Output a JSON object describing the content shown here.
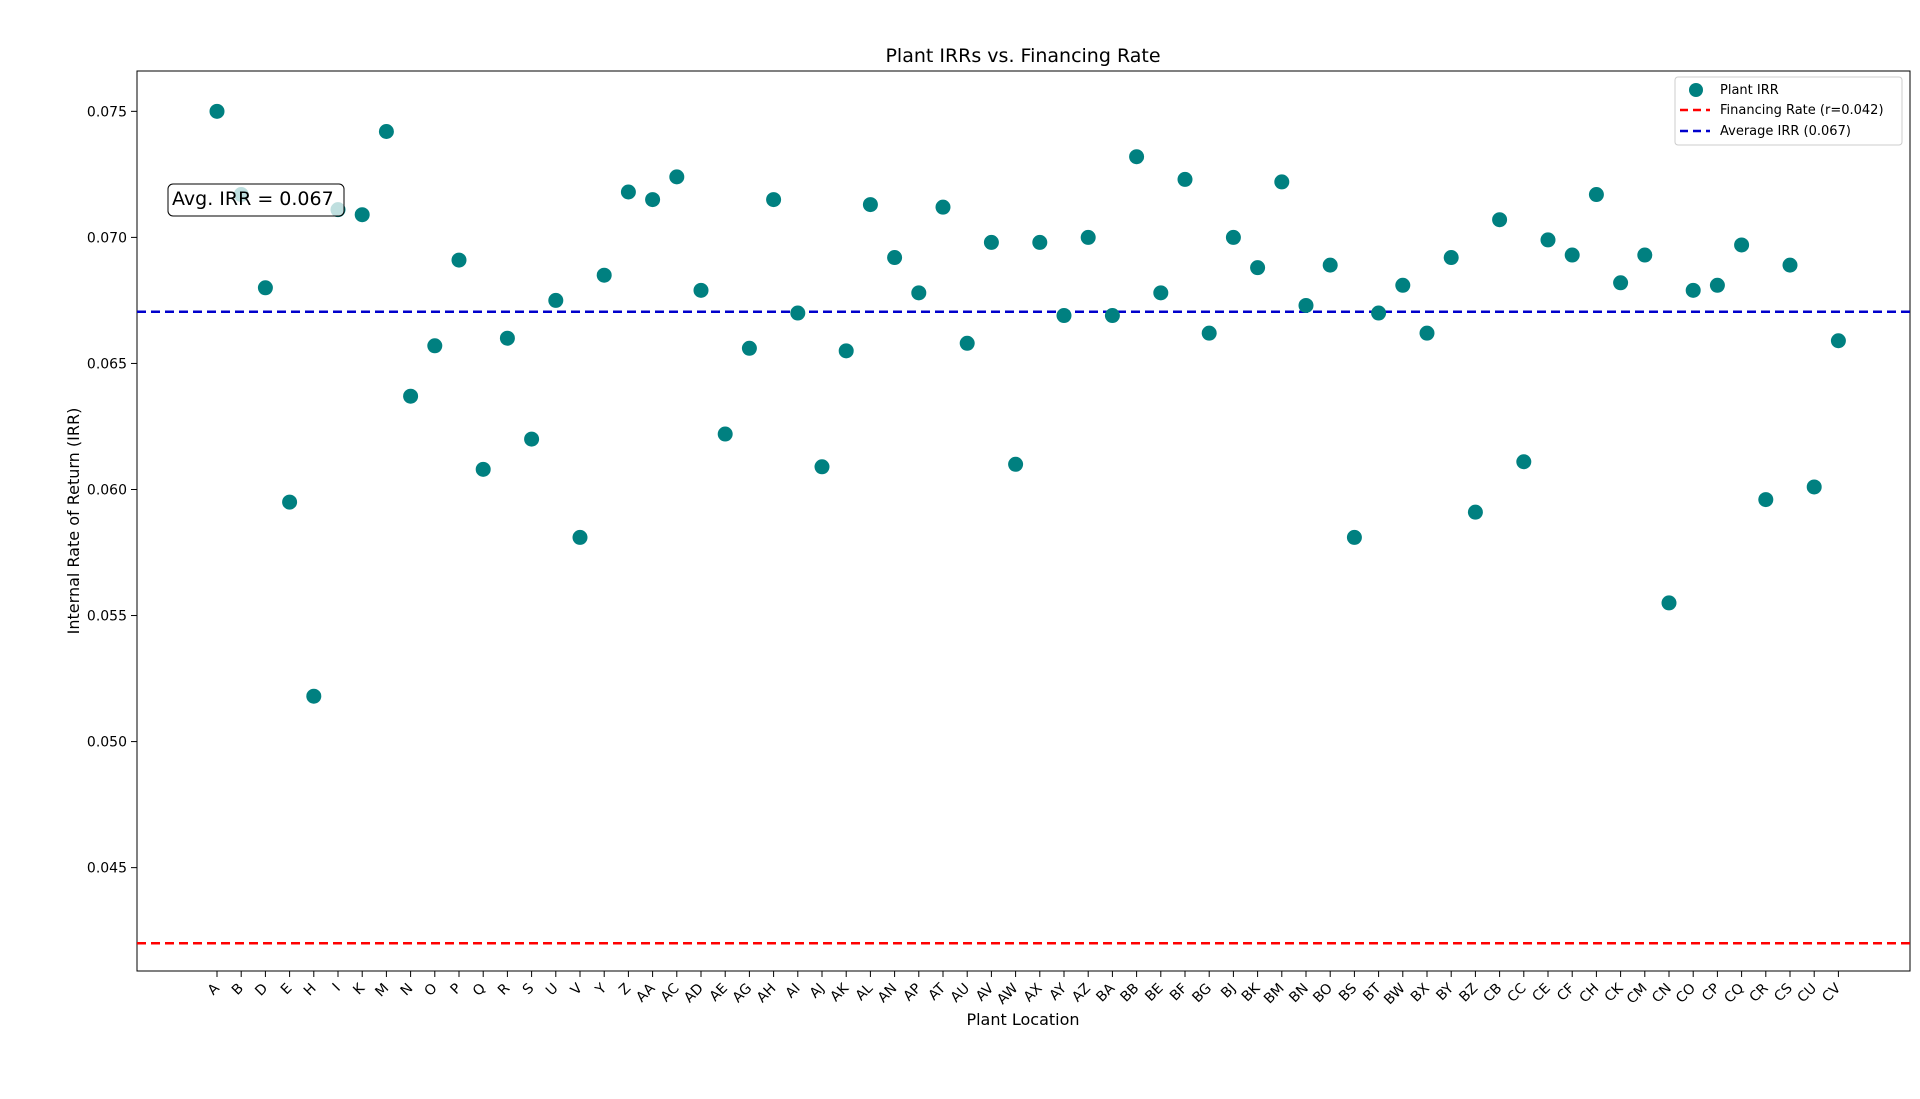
{
  "chart_data": {
    "type": "scatter",
    "title": "Plant IRRs vs. Financing Rate",
    "xlabel": "Plant Location",
    "ylabel": "Internal Rate of Return (IRR)",
    "categories": [
      "A",
      "B",
      "D",
      "E",
      "H",
      "I",
      "K",
      "M",
      "N",
      "O",
      "P",
      "Q",
      "R",
      "S",
      "U",
      "V",
      "Y",
      "Z",
      "AA",
      "AC",
      "AD",
      "AE",
      "AG",
      "AH",
      "AI",
      "AJ",
      "AK",
      "AL",
      "AN",
      "AP",
      "AT",
      "AU",
      "AV",
      "AW",
      "AX",
      "AY",
      "AZ",
      "BA",
      "BB",
      "BE",
      "BF",
      "BG",
      "BJ",
      "BK",
      "BM",
      "BN",
      "BO",
      "BS",
      "BT",
      "BW",
      "BX",
      "BY",
      "BZ",
      "CB",
      "CC",
      "CE",
      "CF",
      "CH",
      "CK",
      "CM",
      "CN",
      "CO",
      "CP",
      "CQ",
      "CR",
      "CS",
      "CU",
      "CV"
    ],
    "series": [
      {
        "name": "Plant IRR",
        "type": "scatter",
        "color": "#008080",
        "values": [
          0.075,
          0.0717,
          0.068,
          0.0595,
          0.0518,
          0.0711,
          0.0709,
          0.0742,
          0.0637,
          0.0657,
          0.0691,
          0.0608,
          0.066,
          0.062,
          0.0675,
          0.0581,
          0.0685,
          0.0718,
          0.0715,
          0.0724,
          0.0679,
          0.0622,
          0.0656,
          0.0715,
          0.067,
          0.0609,
          0.0655,
          0.0713,
          0.0692,
          0.0678,
          0.0712,
          0.0658,
          0.0698,
          0.061,
          0.0698,
          0.0669,
          0.07,
          0.0669,
          0.0732,
          0.0678,
          0.0723,
          0.0662,
          0.07,
          0.0688,
          0.0722,
          0.0673,
          0.0689,
          0.0581,
          0.067,
          0.0681,
          0.0662,
          0.0692,
          0.0591,
          0.0707,
          0.0611,
          0.0699,
          0.0693,
          0.0717,
          0.0682,
          0.0693,
          0.0555,
          0.0679,
          0.0681,
          0.0697,
          0.0596,
          0.0689,
          0.0601,
          0.0659
        ]
      },
      {
        "name": "Financing Rate (r=0.042)",
        "type": "hline",
        "value": 0.042,
        "color": "#ff0000",
        "dash": true
      },
      {
        "name": "Average IRR (0.067)",
        "type": "hline",
        "value": 0.06705,
        "color": "#0000cc",
        "dash": true
      }
    ],
    "ylim": [
      0.0409,
      0.0766
    ],
    "yticks": [
      "0.045",
      "0.050",
      "0.055",
      "0.060",
      "0.065",
      "0.070",
      "0.075"
    ],
    "grid": false,
    "legend_position": "top-right",
    "annotation": {
      "text": "Avg. IRR = 0.067",
      "x_category": "A",
      "y": 0.0714
    }
  }
}
